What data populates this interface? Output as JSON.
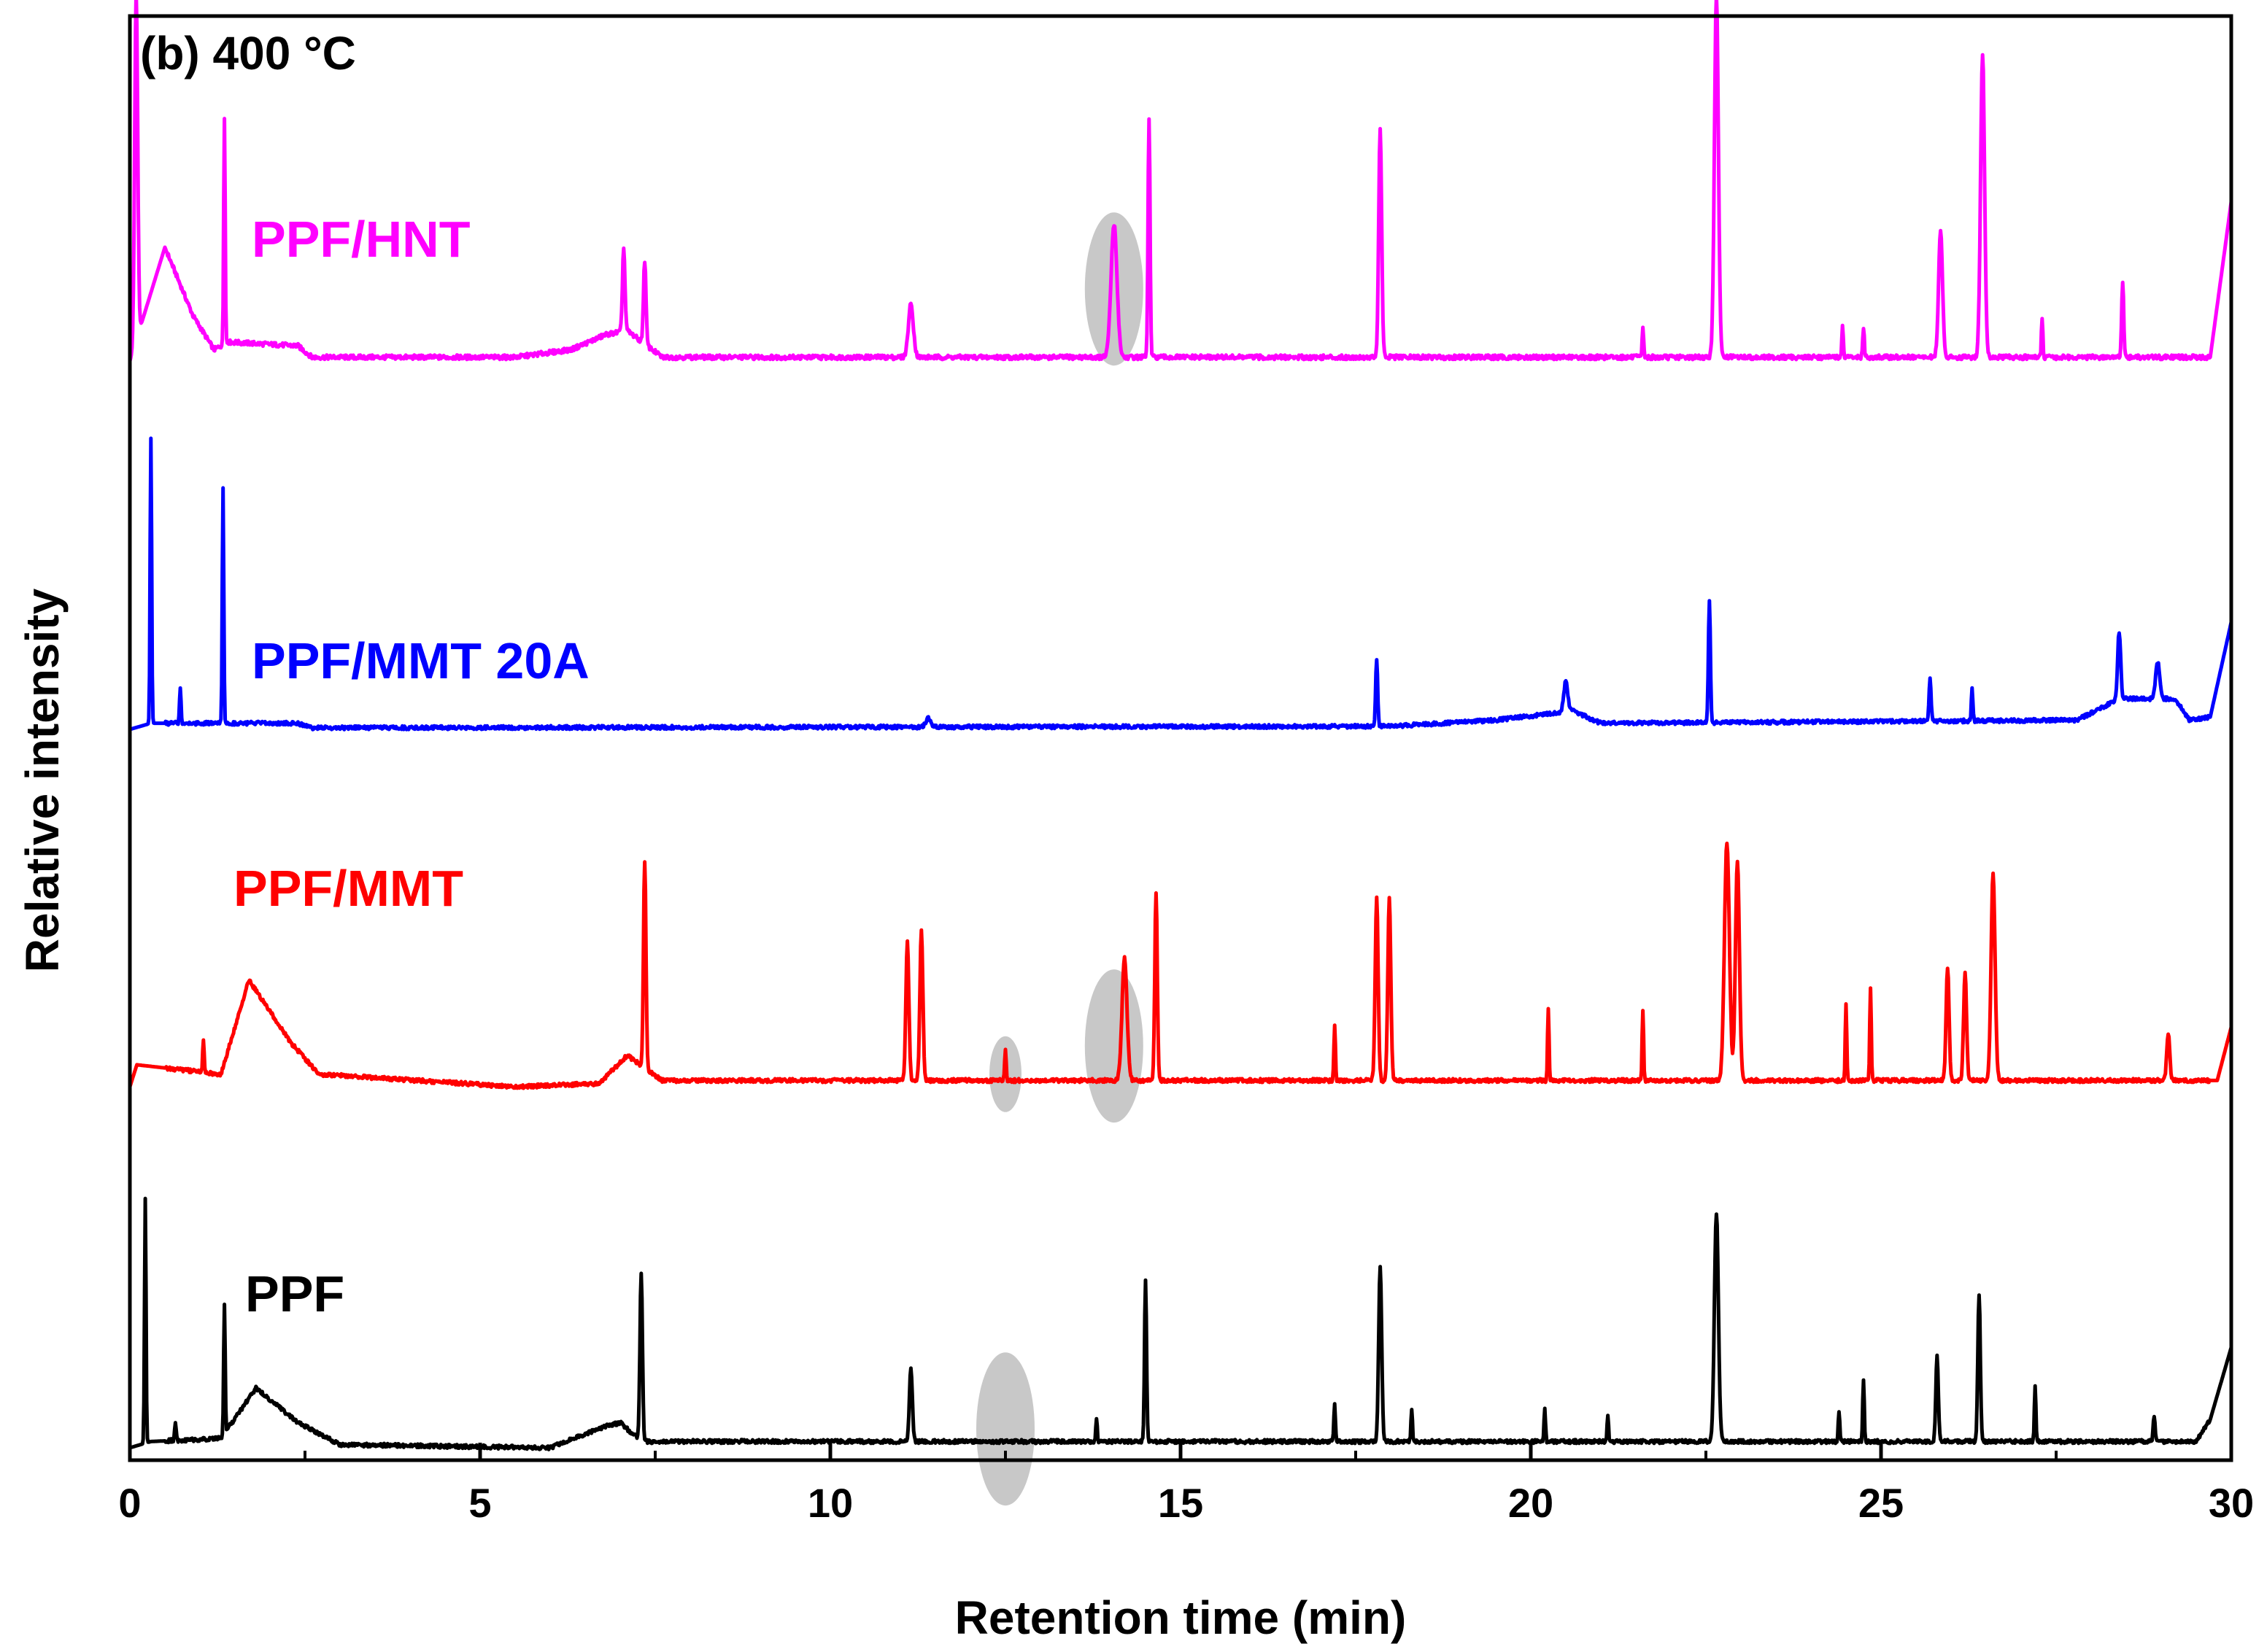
{
  "chart_data": {
    "type": "line",
    "panel_label": "(b) 400 °C",
    "xlabel": "Retention time (min)",
    "ylabel": "Relative intensity",
    "xlim": [
      0,
      30
    ],
    "xticks": [
      0,
      5,
      10,
      15,
      20,
      25,
      30
    ],
    "y_units": "relative intensity, offset traces (baseline 0, tallest peak ≈ 1)",
    "highlight_color": "#c8c8c8",
    "series": [
      {
        "name": "PPF/HNT",
        "label": "PPF/HNT",
        "color": "#ff00ff",
        "start_level": 0.0,
        "end_level": 0.42,
        "base_points": [
          [
            0.0,
            0.0
          ],
          [
            0.5,
            0.3
          ],
          [
            0.9,
            0.12
          ],
          [
            1.2,
            0.03
          ],
          [
            1.4,
            0.05
          ],
          [
            2.4,
            0.04
          ],
          [
            2.6,
            0.01
          ],
          [
            5.5,
            0.01
          ],
          [
            6.3,
            0.03
          ],
          [
            6.8,
            0.07
          ],
          [
            7.1,
            0.08
          ],
          [
            7.6,
            0.01
          ],
          [
            14.0,
            0.01
          ],
          [
            29.7,
            0.01
          ],
          [
            30.0,
            0.42
          ]
        ],
        "peaks": [
          [
            0.09,
            0.92,
            0.06
          ],
          [
            1.35,
            0.6,
            0.03
          ],
          [
            7.05,
            0.22,
            0.05
          ],
          [
            7.35,
            0.22,
            0.05
          ],
          [
            11.15,
            0.14,
            0.1
          ],
          [
            14.05,
            0.35,
            0.12
          ],
          [
            14.55,
            0.63,
            0.04
          ],
          [
            17.85,
            0.6,
            0.06
          ],
          [
            21.6,
            0.08,
            0.03
          ],
          [
            22.65,
            0.95,
            0.08
          ],
          [
            25.85,
            0.33,
            0.08
          ],
          [
            26.45,
            0.8,
            0.08
          ],
          [
            28.45,
            0.2,
            0.04
          ],
          [
            27.3,
            0.1,
            0.03
          ],
          [
            24.45,
            0.08,
            0.03
          ],
          [
            24.75,
            0.08,
            0.03
          ]
        ],
        "highlights": [
          [
            14.05,
            0.19
          ]
        ]
      },
      {
        "name": "PPF/MMT 20A",
        "label": "PPF/MMT 20A",
        "color": "#0000ff",
        "start_level": 0.0,
        "end_level": 0.35,
        "base_points": [
          [
            0.0,
            0.0
          ],
          [
            0.3,
            0.02
          ],
          [
            2.4,
            0.02
          ],
          [
            2.6,
            0.005
          ],
          [
            18.0,
            0.01
          ],
          [
            19.5,
            0.03
          ],
          [
            20.6,
            0.06
          ],
          [
            21.0,
            0.02
          ],
          [
            27.8,
            0.03
          ],
          [
            28.4,
            0.1
          ],
          [
            29.2,
            0.1
          ],
          [
            29.4,
            0.03
          ],
          [
            29.7,
            0.04
          ],
          [
            30.0,
            0.35
          ]
        ],
        "peaks": [
          [
            0.3,
            0.93,
            0.03
          ],
          [
            0.72,
            0.12,
            0.03
          ],
          [
            1.33,
            0.77,
            0.03
          ],
          [
            11.4,
            0.03,
            0.1
          ],
          [
            17.8,
            0.22,
            0.04
          ],
          [
            20.5,
            0.1,
            0.08
          ],
          [
            22.55,
            0.4,
            0.04
          ],
          [
            25.7,
            0.14,
            0.04
          ],
          [
            26.3,
            0.11,
            0.03
          ],
          [
            28.4,
            0.22,
            0.06
          ],
          [
            28.95,
            0.12,
            0.08
          ]
        ],
        "highlights": []
      },
      {
        "name": "PPF/MMT",
        "label": "PPF/MMT",
        "color": "#ff0000",
        "start_level": 0.0,
        "end_level": 0.19,
        "base_points": [
          [
            0.0,
            0.0
          ],
          [
            0.1,
            0.07
          ],
          [
            1.3,
            0.04
          ],
          [
            1.7,
            0.34
          ],
          [
            2.3,
            0.14
          ],
          [
            2.7,
            0.04
          ],
          [
            5.5,
            0.0
          ],
          [
            6.7,
            0.01
          ],
          [
            7.1,
            0.1
          ],
          [
            7.6,
            0.02
          ],
          [
            29.8,
            0.02
          ],
          [
            30.0,
            0.19
          ]
        ],
        "peaks": [
          [
            1.05,
            0.1,
            0.03
          ],
          [
            7.35,
            0.66,
            0.05
          ],
          [
            11.1,
            0.44,
            0.06
          ],
          [
            11.3,
            0.48,
            0.06
          ],
          [
            12.5,
            0.1,
            0.03
          ],
          [
            14.2,
            0.39,
            0.1
          ],
          [
            14.65,
            0.6,
            0.05
          ],
          [
            17.8,
            0.58,
            0.06
          ],
          [
            17.98,
            0.58,
            0.06
          ],
          [
            20.25,
            0.23,
            0.03
          ],
          [
            21.6,
            0.22,
            0.03
          ],
          [
            22.8,
            0.76,
            0.1
          ],
          [
            22.95,
            0.7,
            0.08
          ],
          [
            24.5,
            0.24,
            0.03
          ],
          [
            24.85,
            0.29,
            0.03
          ],
          [
            25.95,
            0.36,
            0.06
          ],
          [
            26.2,
            0.34,
            0.06
          ],
          [
            26.6,
            0.66,
            0.08
          ],
          [
            29.1,
            0.15,
            0.06
          ],
          [
            17.2,
            0.18,
            0.03
          ]
        ],
        "highlights": [
          [
            12.5,
            0.04
          ],
          [
            14.05,
            0.13
          ]
        ]
      },
      {
        "name": "PPF",
        "label": "PPF",
        "color": "#000000",
        "start_level": 0.0,
        "end_level": 0.32,
        "base_points": [
          [
            0.0,
            0.0
          ],
          [
            0.3,
            0.02
          ],
          [
            1.3,
            0.03
          ],
          [
            1.8,
            0.19
          ],
          [
            2.4,
            0.08
          ],
          [
            3.0,
            0.01
          ],
          [
            6.0,
            0.0
          ],
          [
            6.8,
            0.07
          ],
          [
            7.0,
            0.08
          ],
          [
            7.3,
            0.02
          ],
          [
            29.5,
            0.02
          ],
          [
            29.7,
            0.09
          ],
          [
            30.0,
            0.32
          ]
        ],
        "peaks": [
          [
            0.22,
            0.78,
            0.03
          ],
          [
            0.65,
            0.06,
            0.03
          ],
          [
            1.35,
            0.41,
            0.03
          ],
          [
            7.3,
            0.54,
            0.05
          ],
          [
            11.15,
            0.23,
            0.06
          ],
          [
            13.8,
            0.07,
            0.03
          ],
          [
            14.5,
            0.52,
            0.04
          ],
          [
            17.85,
            0.56,
            0.06
          ],
          [
            18.3,
            0.1,
            0.03
          ],
          [
            20.2,
            0.1,
            0.03
          ],
          [
            21.1,
            0.08,
            0.03
          ],
          [
            22.65,
            0.73,
            0.08
          ],
          [
            24.4,
            0.1,
            0.03
          ],
          [
            24.75,
            0.2,
            0.03
          ],
          [
            25.8,
            0.27,
            0.05
          ],
          [
            26.4,
            0.47,
            0.05
          ],
          [
            27.2,
            0.18,
            0.03
          ],
          [
            28.9,
            0.08,
            0.04
          ],
          [
            17.2,
            0.12,
            0.03
          ]
        ],
        "highlights": [
          [
            12.5,
            0.06
          ]
        ]
      }
    ]
  }
}
